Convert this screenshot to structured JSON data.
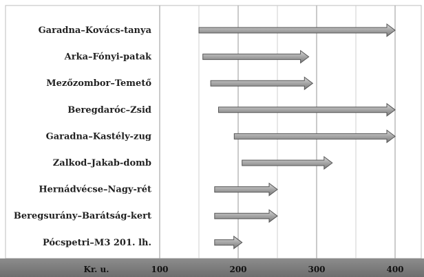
{
  "chart_data": {
    "type": "range-bar",
    "categories": [
      "Garadna–Kovács-tanya",
      "Arka–Fónyi-patak",
      "Mezőzombor–Temető",
      "Beregdaróc–Zsid",
      "Garadna–Kastély-zug",
      "Zalkod–Jakab-domb",
      "Hernádvécse–Nagy-rét",
      "Beregsurány–Barátság-kert",
      "Pócspetri–M3 201. lh."
    ],
    "ranges": [
      [
        150,
        400
      ],
      [
        155,
        290
      ],
      [
        165,
        295
      ],
      [
        175,
        400
      ],
      [
        195,
        400
      ],
      [
        205,
        320
      ],
      [
        170,
        250
      ],
      [
        170,
        250
      ],
      [
        170,
        205
      ]
    ],
    "axis_label": "Kr. u.",
    "xticks": [
      100,
      200,
      300,
      400
    ],
    "xlim": [
      100,
      430
    ],
    "grid": true,
    "colors": {
      "bar_fill": "#a6a6a6",
      "bar_stroke": "#555555",
      "axis_band": "#7f7f7f",
      "grid": "#bdbdbd"
    }
  }
}
